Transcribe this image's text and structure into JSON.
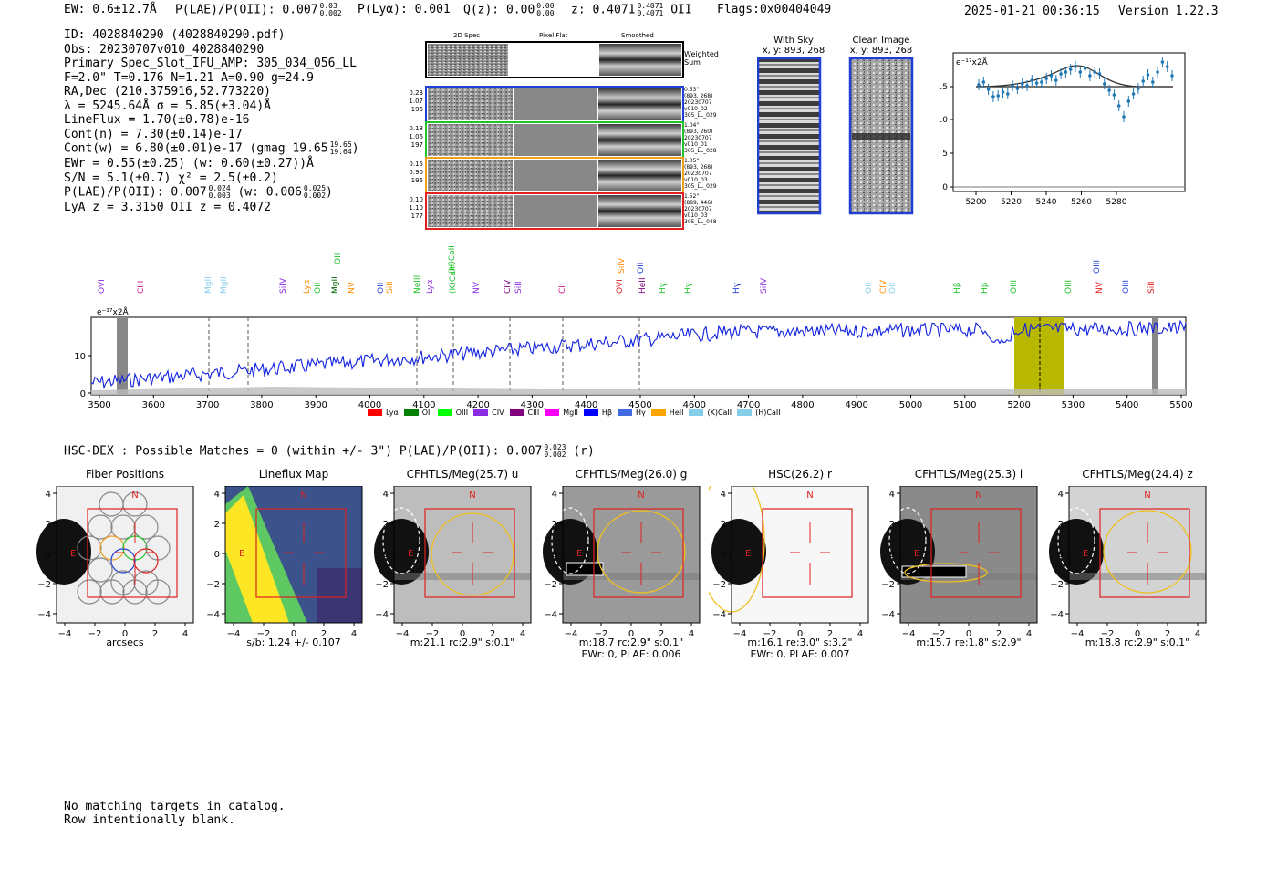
{
  "header": {
    "ew": "EW: 0.6±12.7Å",
    "plae_label": "P(LAE)/P(OII): 0.007",
    "plae_hi": "0.03",
    "plae_lo": "0.002",
    "plya": "P(Lyα): 0.001",
    "qz_label": "Q(z): 0.00",
    "qz_hi": "0.00",
    "qz_lo": "0.00",
    "z_label": "z: 0.4071",
    "z_hi": "0.4071",
    "z_lo": "0.4071",
    "z_line": "OII",
    "flags": "Flags:0x00404049",
    "timestamp": "2025-01-21 00:36:15",
    "version": "Version 1.22.3"
  },
  "info": {
    "id": "ID: 4028840290 (4028840290.pdf)",
    "obs": "Obs: 20230707v010_4028840290",
    "primary": "Primary Spec_Slot_IFU_AMP: 305_034_056_LL",
    "params": "F=2.0\"  T=0.176  N=1.21  A=0.90  g=24.9",
    "radec": "RA,Dec (210.375916,52.773220)",
    "lambda": "λ = 5245.64Å  σ = 5.85(±3.04)Å",
    "lineflux": "LineFlux = 1.70(±0.78)e-16",
    "contn": "Cont(n) = 7.30(±0.14)e-17",
    "contw_label": "Cont(w) = 6.80(±0.01)e-17 (gmag 19.65",
    "contw_hi": "19.65",
    "contw_lo": "19.64",
    "contw_close": ")",
    "ewr": "EWr = 0.55(±0.25) (w: 0.60(±0.27))Å",
    "sn": "S/N = 5.1(±0.7)  χ² = 2.5(±0.2)",
    "plae_label": "P(LAE)/P(OII): 0.007",
    "plae_hi": "0.024",
    "plae_lo": "0.003",
    "plae_w": "(w: 0.006",
    "plae_w_hi": "0.025",
    "plae_w_lo": "0.002",
    "plae_w_close": ")",
    "lyaz": "LyA z = 3.3150  OII z = 0.4072"
  },
  "stamps": {
    "col_titles": [
      "2D Spec",
      "Pixel Flat",
      "Smoothed"
    ],
    "weighted_sum": "Weighted Sum",
    "rows": [
      {
        "left": [
          "0.23",
          "1.07",
          "196"
        ],
        "side": [
          "0.53\"",
          "(893, 268)",
          "20230707",
          "v010_02",
          "305_LL_029"
        ],
        "color": "#1f3fd6"
      },
      {
        "left": [
          "0.18",
          "1.06",
          "197"
        ],
        "side": [
          "1.04\"",
          "(893, 260)",
          "20230707",
          "v010_01",
          "305_LL_028"
        ],
        "color": "#22c32a"
      },
      {
        "left": [
          "0.15",
          "0.90",
          "196"
        ],
        "side": [
          "1.05\"",
          "(893, 268)",
          "20230707",
          "v010_03",
          "305_LL_029"
        ],
        "color": "#f0a020"
      },
      {
        "left": [
          "0.10",
          "1.10",
          "177"
        ],
        "side": [
          "1.52\"",
          "(889, 446)",
          "20230707",
          "v010_03",
          "305_LL_048"
        ],
        "color": "#e02020"
      }
    ]
  },
  "sky": {
    "with_sky_title": "With Sky",
    "with_sky_xy": "x, y: 893, 268",
    "clean_title": "Clean Image",
    "clean_xy": "x, y: 893, 268"
  },
  "zoom_chart": {
    "unit_label": "e⁻¹⁷x2Å",
    "x_ticks": [
      "5200",
      "5220",
      "5240",
      "5260",
      "5280"
    ],
    "y_ticks": [
      "0",
      "5",
      "10",
      "15"
    ]
  },
  "spectrum": {
    "unit_label": "e⁻¹⁷x2Å",
    "x_ticks": [
      "3500",
      "3600",
      "3700",
      "3800",
      "3900",
      "4000",
      "4100",
      "4200",
      "4300",
      "4400",
      "4500",
      "4600",
      "4700",
      "4800",
      "4900",
      "5000",
      "5100",
      "5200",
      "5300",
      "5400",
      "5500"
    ],
    "y_ticks": [
      "0",
      "10"
    ],
    "line_labels": [
      {
        "text": "OVI",
        "color": "#8b2be2"
      },
      {
        "text": "CIII",
        "color": "#c71585"
      },
      {
        "text": "MgII",
        "color": "#87ceeb"
      },
      {
        "text": "MgII",
        "color": "#87ceeb"
      },
      {
        "text": "SiIV",
        "color": "#8b2be2"
      },
      {
        "text": "Lyα",
        "color": "#ff8c00"
      },
      {
        "text": "OII",
        "color": "#22c32a"
      },
      {
        "text": "OII",
        "color": "#22c32a"
      },
      {
        "text": "MgII",
        "color": "#006400"
      },
      {
        "text": "NV",
        "color": "#ff8c00"
      },
      {
        "text": "OII",
        "color": "#1f3fd6"
      },
      {
        "text": "SiII",
        "color": "#ff8c00"
      },
      {
        "text": "NeIII",
        "color": "#22c32a"
      },
      {
        "text": "Lyα",
        "color": "#8b2be2"
      },
      {
        "text": "(H)CaII",
        "color": "#22c32a"
      },
      {
        "text": "(K)CaII",
        "color": "#22c32a"
      },
      {
        "text": "NV",
        "color": "#8b2be2"
      },
      {
        "text": "CIV",
        "color": "#800080"
      },
      {
        "text": "SiII",
        "color": "#8b2be2"
      },
      {
        "text": "CII",
        "color": "#c71585"
      },
      {
        "text": "SiIV",
        "color": "#ff8c00"
      },
      {
        "text": "OVI",
        "color": "#e02020"
      },
      {
        "text": "OII",
        "color": "#1f3fd6"
      },
      {
        "text": "HeII",
        "color": "#800080"
      },
      {
        "text": "Hγ",
        "color": "#22c32a"
      },
      {
        "text": "Hγ",
        "color": "#22c32a"
      },
      {
        "text": "Hγ",
        "color": "#1f3fd6"
      },
      {
        "text": "SiIV",
        "color": "#8b2be2"
      },
      {
        "text": "OII",
        "color": "#87ceeb"
      },
      {
        "text": "CIV",
        "color": "#ff8c00"
      },
      {
        "text": "OII",
        "color": "#87ceeb"
      },
      {
        "text": "Hβ",
        "color": "#22c32a"
      },
      {
        "text": "Hβ",
        "color": "#22c32a"
      },
      {
        "text": "OIII",
        "color": "#22c32a"
      },
      {
        "text": "OIII",
        "color": "#22c32a"
      },
      {
        "text": "NV",
        "color": "#e02020"
      },
      {
        "text": "OIII",
        "color": "#1f3fd6"
      },
      {
        "text": "OIII",
        "color": "#1f3fd6"
      },
      {
        "text": "SiII",
        "color": "#e02020"
      }
    ],
    "legend": [
      {
        "label": "Lyα",
        "color": "#ff0000"
      },
      {
        "label": "OII",
        "color": "#008000"
      },
      {
        "label": "OIII",
        "color": "#00ff00"
      },
      {
        "label": "CIV",
        "color": "#8a2be2"
      },
      {
        "label": "CIII",
        "color": "#800080"
      },
      {
        "label": "MgII",
        "color": "#ff00ff"
      },
      {
        "label": "Hβ",
        "color": "#0000ff"
      },
      {
        "label": "Hγ",
        "color": "#4169e1"
      },
      {
        "label": "HeII",
        "color": "#ffa500"
      },
      {
        "label": "(K)CaII",
        "color": "#87ceeb"
      },
      {
        "label": "(H)CaII",
        "color": "#87ceeb"
      }
    ]
  },
  "hsc": {
    "title": "HSC-DEX : Possible Matches = 0 (within +/- 3\")  P(LAE)/P(OII): 0.007",
    "hi": "0.023",
    "lo": "0.002",
    "suffix": "(r)"
  },
  "cutouts": {
    "ticks": [
      "−4",
      "−2",
      "0",
      "2",
      "4"
    ],
    "yticks": [
      "4",
      "2",
      "0",
      "−2",
      "−4"
    ],
    "north": "N",
    "east": "E",
    "panels": [
      {
        "title": "Fiber Positions",
        "note1": "arcsecs",
        "note2": ""
      },
      {
        "title": "Lineflux Map",
        "note1": "s/b: 1.24 +/- 0.107",
        "note2": ""
      },
      {
        "title": "CFHTLS/Meg(25.7) u",
        "note1": "m:21.1 rc:2.9\"  s:0.1\"",
        "note2": ""
      },
      {
        "title": "CFHTLS/Meg(26.0) g",
        "note1": "m:18.7 rc:2.9\"  s:0.1\"",
        "note2": "EWr: 0, PLAE: 0.006"
      },
      {
        "title": "HSC(26.2) r",
        "note1": "m:16.1  re:3.0\"  s:3.2\"",
        "note2": "EWr: 0, PLAE: 0.007"
      },
      {
        "title": "CFHTLS/Meg(25.3) i",
        "note1": "m:15.7  re:1.8\"  s:2.9\"",
        "note2": ""
      },
      {
        "title": "CFHTLS/Meg(24.4) z",
        "note1": "m:18.8 rc:2.9\"  s:0.1\"",
        "note2": ""
      }
    ]
  },
  "footer": {
    "line1": "No matching targets in catalog.",
    "line2": "Row intentionally blank."
  }
}
